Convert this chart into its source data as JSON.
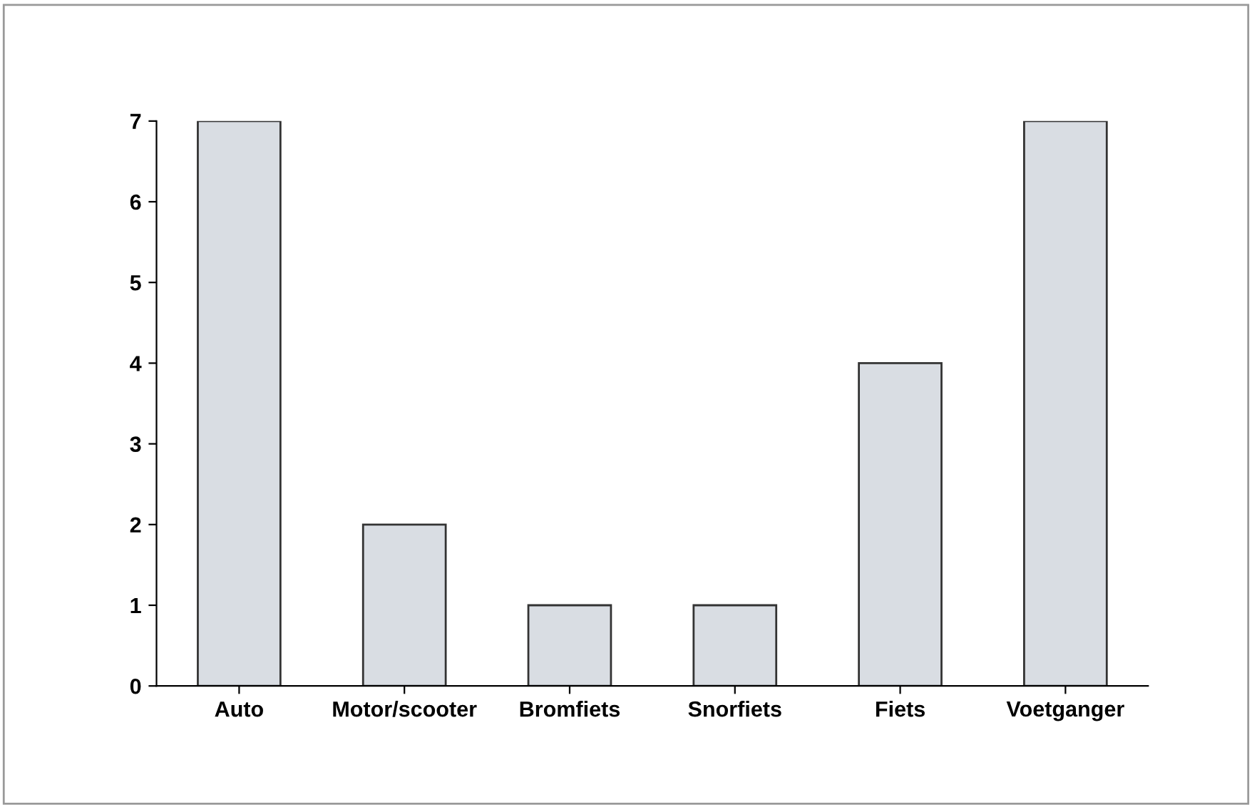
{
  "chart_data": {
    "type": "bar",
    "categories": [
      "Auto",
      "Motor/scooter",
      "Bromfiets",
      "Snorfiets",
      "Fiets",
      "Voetganger"
    ],
    "values": [
      7,
      2,
      1,
      1,
      4,
      7
    ],
    "color": "#d9dde3",
    "ylim": [
      0,
      7
    ],
    "yticks": [
      0,
      1,
      2,
      3,
      4,
      5,
      6,
      7
    ],
    "grid": false
  }
}
